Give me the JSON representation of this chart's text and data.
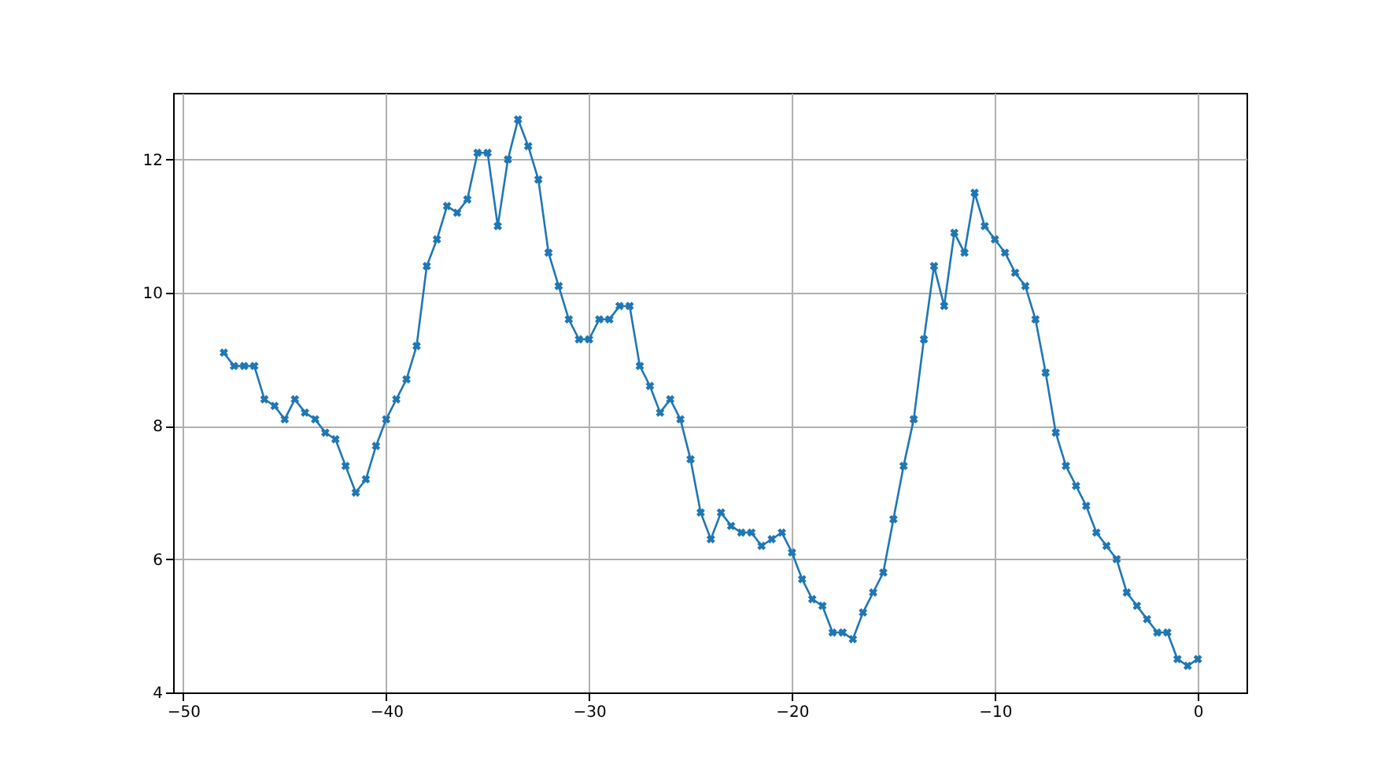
{
  "chart_data": {
    "type": "line",
    "marker": "cross",
    "line_style": "solid",
    "grid": true,
    "xlim": [
      -50.5,
      2.4
    ],
    "xticks": [
      -50,
      -40,
      -30,
      -20,
      -10,
      0
    ],
    "ylim": [
      4,
      13
    ],
    "yticks": [
      4,
      6,
      8,
      10,
      12
    ],
    "x": [
      -48,
      -47.5,
      -47,
      -46.5,
      -46,
      -45.5,
      -45,
      -44.5,
      -44,
      -43.5,
      -43,
      -42.5,
      -42,
      -41.5,
      -41,
      -40.5,
      -40,
      -39.5,
      -39,
      -38.5,
      -38,
      -37.5,
      -37,
      -36.5,
      -36,
      -35.5,
      -35,
      -34.5,
      -34,
      -33.5,
      -33,
      -32.5,
      -32,
      -31.5,
      -31,
      -30.5,
      -30,
      -29.5,
      -29,
      -28.5,
      -28,
      -27.5,
      -27,
      -26.5,
      -26,
      -25.5,
      -25,
      -24.5,
      -24,
      -23.5,
      -23,
      -22.5,
      -22,
      -21.5,
      -21,
      -20.5,
      -20,
      -19.5,
      -19,
      -18.5,
      -18,
      -17.5,
      -17,
      -16.5,
      -16,
      -15.5,
      -15,
      -14.5,
      -14,
      -13.5,
      -13,
      -12.5,
      -12,
      -11.5,
      -11,
      -10.5,
      -10,
      -9.5,
      -9,
      -8.5,
      -8,
      -7.5,
      -7,
      -6.5,
      -6,
      -5.5,
      -5,
      -4.5,
      -4,
      -3.5,
      -3,
      -2.5,
      -2,
      -1.5,
      -1,
      -0.5,
      0
    ],
    "series": [
      {
        "color": "#1f77b4",
        "values": [
          9.1,
          8.9,
          8.9,
          8.9,
          8.4,
          8.3,
          8.1,
          8.4,
          8.2,
          8.1,
          7.9,
          7.8,
          7.4,
          7.0,
          7.2,
          7.7,
          8.1,
          8.4,
          8.7,
          9.2,
          10.4,
          10.8,
          11.3,
          11.2,
          11.4,
          12.1,
          12.1,
          11.0,
          12.0,
          12.6,
          12.2,
          11.7,
          10.6,
          10.1,
          9.6,
          9.3,
          9.3,
          9.6,
          9.6,
          9.8,
          9.8,
          8.9,
          8.6,
          8.2,
          8.4,
          8.1,
          7.5,
          6.7,
          6.3,
          6.7,
          6.5,
          6.4,
          6.4,
          6.2,
          6.3,
          6.4,
          6.1,
          5.7,
          5.4,
          5.3,
          4.9,
          4.9,
          4.8,
          5.2,
          5.5,
          5.8,
          6.6,
          7.4,
          8.1,
          9.3,
          10.4,
          9.8,
          10.9,
          10.6,
          11.5,
          11.0,
          10.8,
          10.6,
          10.3,
          10.1,
          9.6,
          8.8,
          7.9,
          7.4,
          7.1,
          6.8,
          6.4,
          6.2,
          6.0,
          5.5,
          5.3,
          5.1,
          4.9,
          4.9,
          4.5,
          4.4,
          4.5
        ]
      }
    ]
  }
}
